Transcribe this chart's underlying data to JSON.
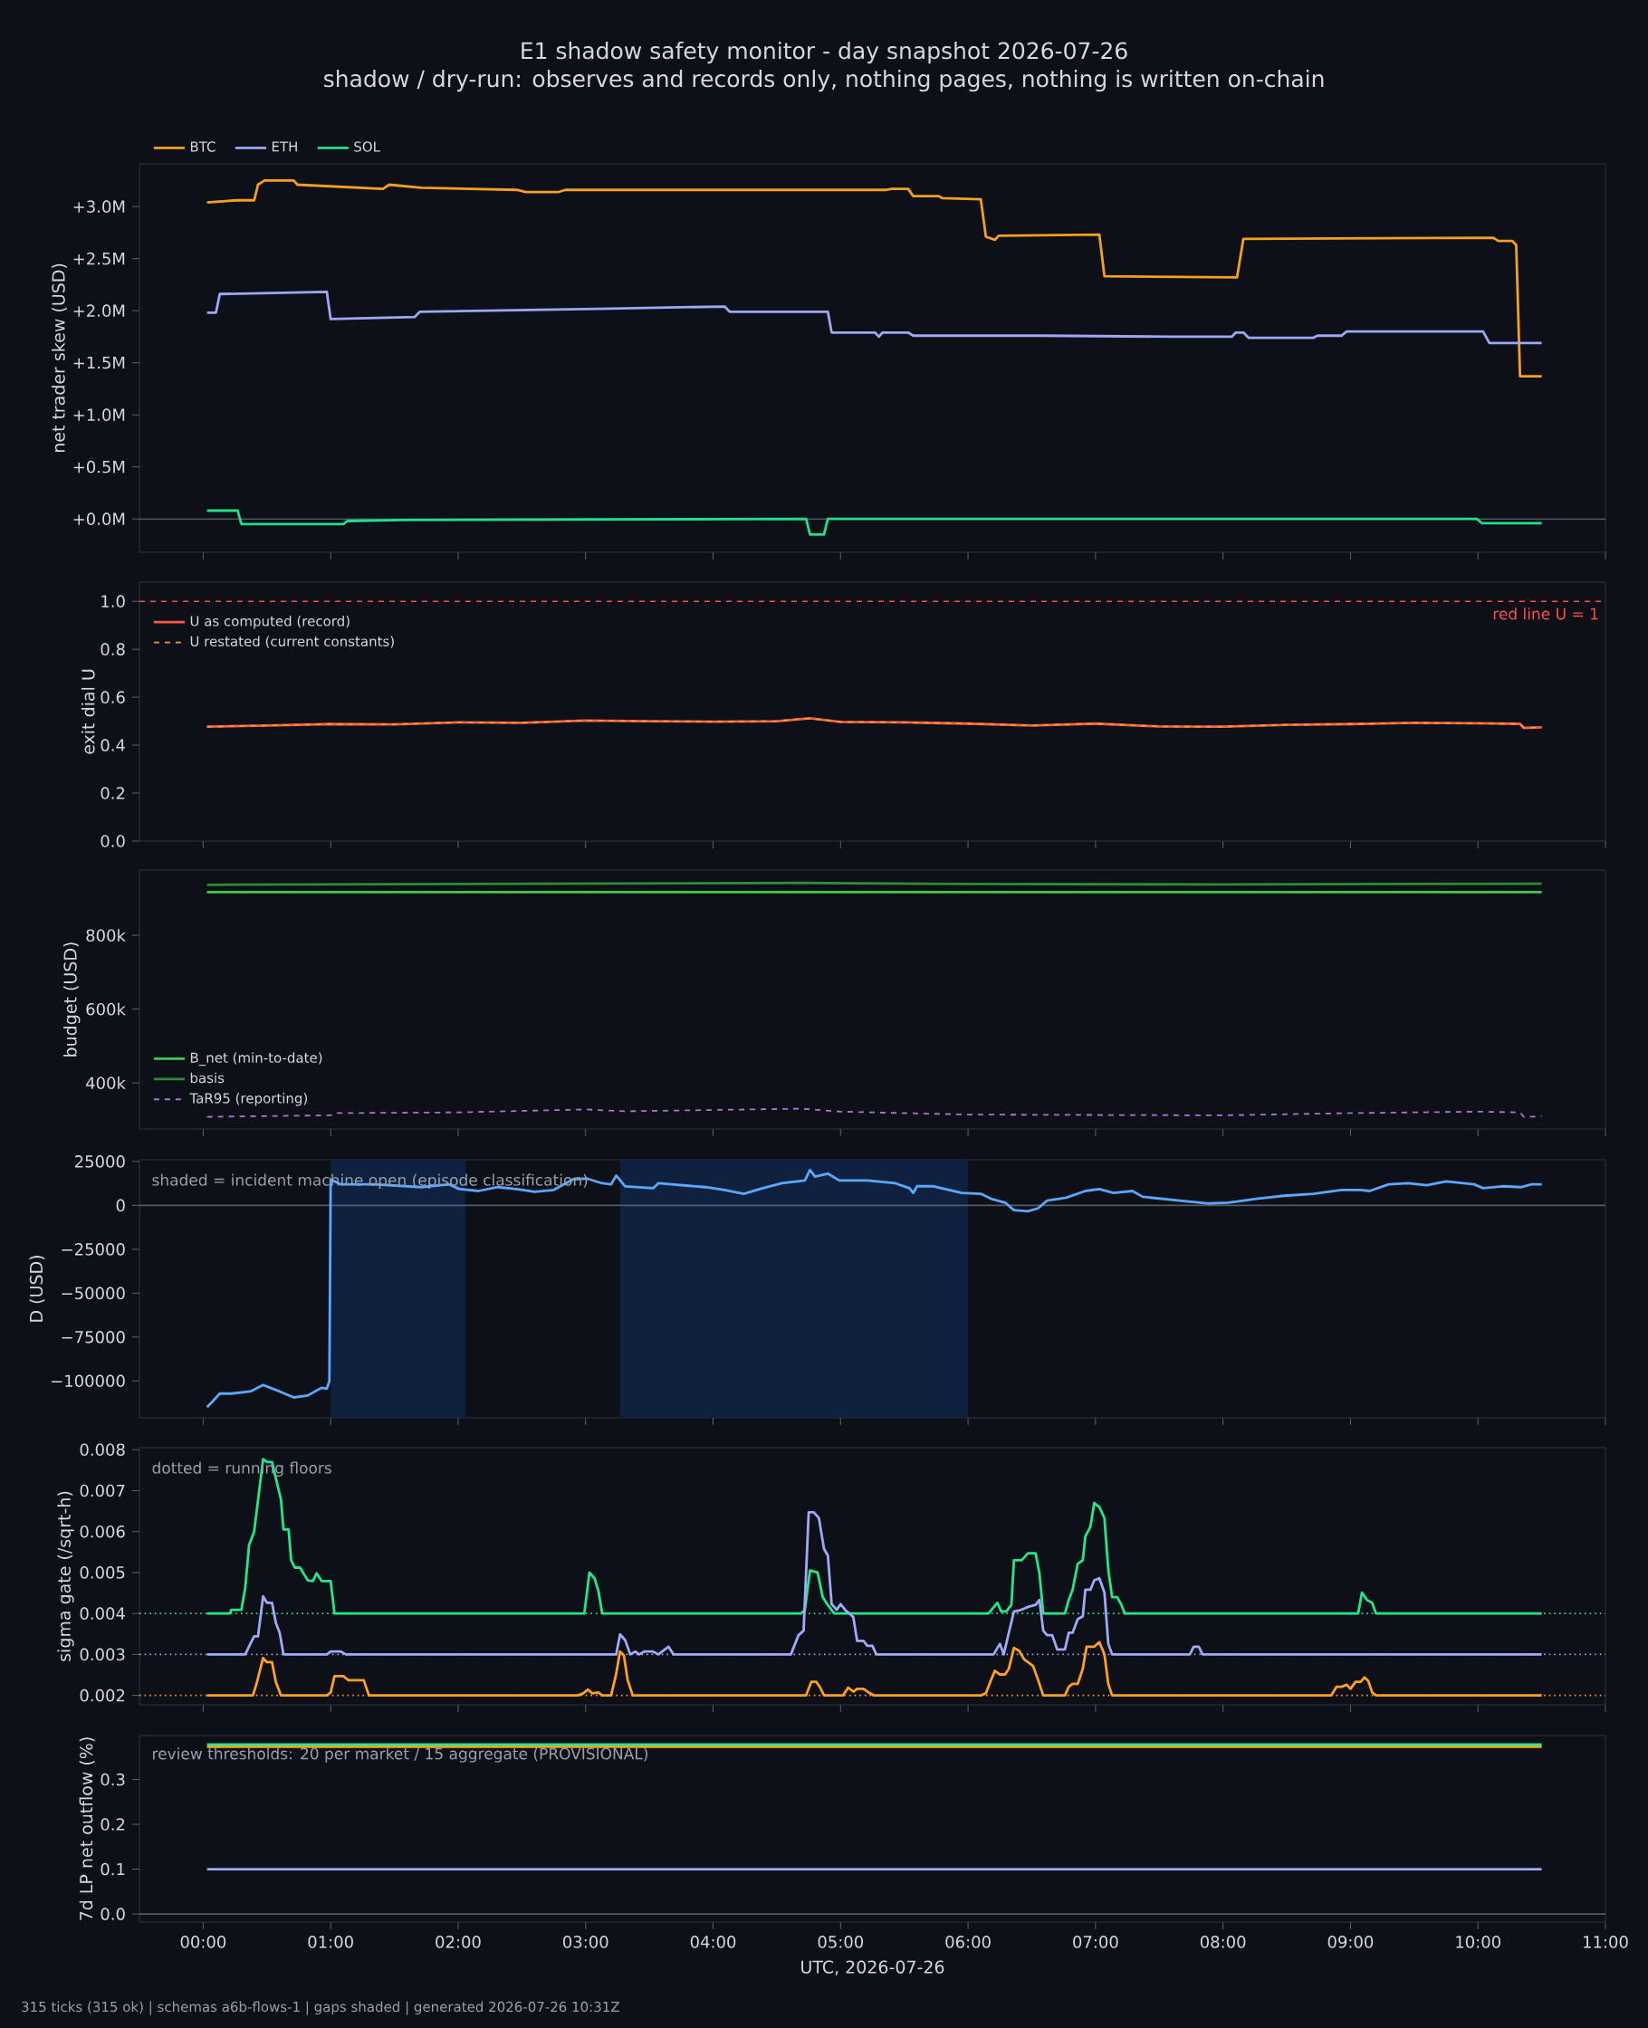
{
  "chart_data": [
    {
      "type": "line",
      "title": "E1 shadow safety monitor - day snapshot 2026-07-26",
      "subtitle": "shadow / dry-run: observes and records only, nothing pages, nothing is written on-chain",
      "ylabel": "net trader skew (USD)",
      "xlim": [
        -0.5,
        11
      ],
      "xticks": [
        0,
        1,
        2,
        3,
        4,
        5,
        6,
        7,
        8,
        9,
        10,
        11
      ],
      "ylim": [
        -320000,
        3410000
      ],
      "yticks": [
        {
          "value": 0,
          "label": "+0.0M"
        },
        {
          "value": 500000,
          "label": "+0.5M"
        },
        {
          "value": 1000000,
          "label": "+1.0M"
        },
        {
          "value": 1500000,
          "label": "+1.5M"
        },
        {
          "value": 2000000,
          "label": "+2.0M"
        },
        {
          "value": 2500000,
          "label": "+2.5M"
        },
        {
          "value": 3000000,
          "label": "+3.0M"
        }
      ],
      "tick_labels": "y",
      "legend": "top left",
      "ref_lines": [
        {
          "axis": "y",
          "value": 0,
          "color": "#555a66"
        }
      ],
      "series": [
        {
          "name": "BTC",
          "color": "#f5a01f",
          "x": [
            0.03,
            0.26,
            0.4,
            0.43,
            0.48,
            0.71,
            0.74,
            1.41,
            1.46,
            1.71,
            2.46,
            2.53,
            2.79,
            2.84,
            5.36,
            5.4,
            5.53,
            5.57,
            5.77,
            5.8,
            6.1,
            6.14,
            6.21,
            6.24,
            7.03,
            7.07,
            8.11,
            8.16,
            10.12,
            10.16,
            10.27,
            10.3,
            10.33,
            10.5
          ],
          "values": [
            3040000,
            3060000,
            3060000,
            3210000,
            3250000,
            3250000,
            3210000,
            3170000,
            3210000,
            3180000,
            3160000,
            3140000,
            3140000,
            3160000,
            3160000,
            3170000,
            3170000,
            3100000,
            3100000,
            3080000,
            3070000,
            2710000,
            2680000,
            2720000,
            2730000,
            2330000,
            2320000,
            2690000,
            2700000,
            2670000,
            2670000,
            2630000,
            1370000,
            1370000
          ]
        },
        {
          "name": "ETH",
          "color": "#9ea7f7",
          "x": [
            0.03,
            0.1,
            0.13,
            0.97,
            1.0,
            1.66,
            1.7,
            3.2,
            4.09,
            4.13,
            4.9,
            4.93,
            5.27,
            5.3,
            5.33,
            5.53,
            5.57,
            6.47,
            6.58,
            7.59,
            8.07,
            8.1,
            8.16,
            8.2,
            8.71,
            8.74,
            8.93,
            8.97,
            10.04,
            10.09,
            10.5
          ],
          "values": [
            1980000,
            1980000,
            2160000,
            2180000,
            1920000,
            1940000,
            1990000,
            2020000,
            2040000,
            1990000,
            1990000,
            1790000,
            1790000,
            1750000,
            1790000,
            1790000,
            1760000,
            1760000,
            1760000,
            1750000,
            1750000,
            1790000,
            1790000,
            1740000,
            1740000,
            1760000,
            1760000,
            1800000,
            1800000,
            1690000,
            1690000
          ]
        },
        {
          "name": "SOL",
          "color": "#22e08a",
          "x": [
            0.03,
            0.27,
            0.3,
            1.1,
            1.13,
            1.56,
            4.73,
            4.76,
            4.87,
            4.9,
            9.99,
            10.03,
            10.5
          ],
          "values": [
            80000,
            80000,
            -50000,
            -50000,
            -20000,
            -10000,
            0,
            -150000,
            -150000,
            0,
            0,
            -40000,
            -40000
          ]
        }
      ]
    },
    {
      "type": "line",
      "ylabel": "exit dial U",
      "xlim": [
        -0.5,
        11
      ],
      "xticks": [
        0,
        1,
        2,
        3,
        4,
        5,
        6,
        7,
        8,
        9,
        10,
        11
      ],
      "ylim": [
        0,
        1.08
      ],
      "yticks": [
        {
          "value": 0,
          "label": "0.0"
        },
        {
          "value": 0.2,
          "label": "0.2"
        },
        {
          "value": 0.4,
          "label": "0.4"
        },
        {
          "value": 0.6,
          "label": "0.6"
        },
        {
          "value": 0.8,
          "label": "0.8"
        },
        {
          "value": 1,
          "label": "1.0"
        }
      ],
      "tick_labels": "y",
      "legend": "top left",
      "ref_lines": [
        {
          "axis": "y",
          "value": 1,
          "label": "red line U = 1",
          "color": "#ff4d4d",
          "line_style": "dashed"
        }
      ],
      "series": [
        {
          "name": "U as computed (record)",
          "color": "#ff5a46",
          "x": [
            0.03,
            0.5,
            1.0,
            1.5,
            2.0,
            2.5,
            3.0,
            3.5,
            4.0,
            4.5,
            4.76,
            5.0,
            5.5,
            6.0,
            6.5,
            7.0,
            7.5,
            8.0,
            8.5,
            9.0,
            9.5,
            10.0,
            10.33,
            10.36,
            10.5
          ],
          "values": [
            0.477,
            0.482,
            0.488,
            0.487,
            0.495,
            0.493,
            0.503,
            0.5,
            0.498,
            0.5,
            0.512,
            0.497,
            0.495,
            0.49,
            0.482,
            0.49,
            0.478,
            0.477,
            0.485,
            0.488,
            0.493,
            0.491,
            0.489,
            0.472,
            0.474
          ]
        },
        {
          "name": "U restated (current constants)",
          "color": "#e8a030",
          "line_style": "dashed",
          "x": [
            0.03,
            0.5,
            1.0,
            1.5,
            2.0,
            2.5,
            3.0,
            3.5,
            4.0,
            4.5,
            4.76,
            5.0,
            5.5,
            6.0,
            6.5,
            7.0,
            7.5,
            8.0,
            8.5,
            9.0,
            9.5,
            10.0,
            10.33,
            10.36,
            10.5
          ],
          "values": [
            0.477,
            0.482,
            0.488,
            0.487,
            0.495,
            0.493,
            0.503,
            0.5,
            0.498,
            0.5,
            0.512,
            0.497,
            0.495,
            0.49,
            0.482,
            0.49,
            0.478,
            0.477,
            0.485,
            0.488,
            0.493,
            0.491,
            0.489,
            0.472,
            0.474
          ]
        }
      ]
    },
    {
      "type": "line",
      "ylabel": "budget (USD)",
      "xlim": [
        -0.5,
        11
      ],
      "xticks": [
        0,
        1,
        2,
        3,
        4,
        5,
        6,
        7,
        8,
        9,
        10,
        11
      ],
      "ylim": [
        275000,
        977000
      ],
      "yticks": [
        {
          "value": 400000,
          "label": "400k"
        },
        {
          "value": 600000,
          "label": "600k"
        },
        {
          "value": 800000,
          "label": "800k"
        }
      ],
      "tick_labels": "y",
      "legend": "bottom left",
      "series": [
        {
          "name": "B_net (min-to-date)",
          "color": "#3ccc4a",
          "x": [
            0.03,
            10.5
          ],
          "values": [
            917000,
            917000
          ]
        },
        {
          "name": "basis",
          "color": "#2e8b3a",
          "x": [
            0.03,
            2.0,
            4.7,
            6.0,
            8.0,
            10.5
          ],
          "values": [
            937000,
            939000,
            942000,
            939000,
            938000,
            940000
          ]
        },
        {
          "name": "TaR95 (reporting)",
          "color": "#b070d8",
          "line_style": "dashed",
          "x": [
            0.03,
            1.0,
            1.05,
            2.0,
            3.0,
            3.3,
            4.7,
            5.0,
            6.0,
            7.0,
            8.0,
            9.0,
            10.0,
            10.33,
            10.36,
            10.5
          ],
          "values": [
            308000,
            312000,
            318000,
            320000,
            328000,
            323000,
            330000,
            322000,
            314000,
            313000,
            312000,
            318000,
            322000,
            320000,
            308000,
            309000
          ]
        }
      ]
    },
    {
      "type": "line",
      "ylabel": "D (USD)",
      "xlim": [
        -0.5,
        11
      ],
      "xticks": [
        0,
        1,
        2,
        3,
        4,
        5,
        6,
        7,
        8,
        9,
        10,
        11
      ],
      "ylim": [
        -121000,
        26000
      ],
      "yticks": [
        {
          "value": -100000,
          "label": "−100000"
        },
        {
          "value": -75000,
          "label": "−75000"
        },
        {
          "value": -50000,
          "label": "−50000"
        },
        {
          "value": -25000,
          "label": "−25000"
        },
        0,
        25000
      ],
      "tick_labels": "y",
      "annotations": [
        "shaded = incident machine open (episode classification)"
      ],
      "bands": [
        {
          "axis": "x",
          "from": 1.0,
          "to": 2.06,
          "color": "#10213f"
        },
        {
          "axis": "x",
          "from": 3.27,
          "to": 6.0,
          "color": "#10213f"
        }
      ],
      "ref_lines": [
        {
          "axis": "y",
          "value": 0,
          "color": "#555a66"
        }
      ],
      "series": [
        {
          "color": "#5aa8ff",
          "x": [
            0.03,
            0.07,
            0.13,
            0.22,
            0.37,
            0.47,
            0.6,
            0.71,
            0.82,
            0.93,
            0.97,
            0.99,
            1.0,
            1.08,
            1.34,
            1.71,
            1.93,
            2.01,
            2.16,
            2.31,
            2.46,
            2.6,
            2.75,
            2.9,
            3.01,
            3.13,
            3.2,
            3.24,
            3.31,
            3.53,
            3.57,
            3.94,
            4.09,
            4.24,
            4.39,
            4.54,
            4.72,
            4.76,
            4.8,
            4.9,
            4.99,
            5.21,
            5.43,
            5.54,
            5.57,
            5.6,
            5.73,
            5.95,
            6.1,
            6.18,
            6.29,
            6.36,
            6.47,
            6.55,
            6.62,
            6.77,
            6.92,
            7.03,
            7.14,
            7.29,
            7.37,
            7.66,
            7.89,
            8.04,
            8.11,
            8.26,
            8.48,
            8.71,
            8.93,
            9.08,
            9.15,
            9.3,
            9.45,
            9.6,
            9.75,
            9.97,
            10.04,
            10.19,
            10.34,
            10.42,
            10.5
          ],
          "values": [
            -114900,
            -112000,
            -107200,
            -107200,
            -106000,
            -102300,
            -106000,
            -109400,
            -108300,
            -103900,
            -104400,
            -100100,
            14800,
            12000,
            12000,
            10400,
            12000,
            9300,
            8200,
            10400,
            9300,
            7700,
            8800,
            14800,
            15300,
            12600,
            12000,
            17000,
            10900,
            9800,
            12600,
            10400,
            8800,
            6600,
            9800,
            12600,
            14200,
            20200,
            16400,
            18100,
            14200,
            14200,
            12600,
            9800,
            7100,
            10900,
            10900,
            7100,
            6600,
            3800,
            1600,
            -2700,
            -3300,
            -1600,
            2700,
            4400,
            8200,
            9300,
            7100,
            8200,
            4900,
            2700,
            1100,
            1600,
            2200,
            3800,
            5500,
            6600,
            8800,
            8800,
            8200,
            12000,
            12600,
            11500,
            13700,
            12000,
            9800,
            10900,
            10400,
            12000,
            12000
          ]
        }
      ]
    },
    {
      "type": "line",
      "ylabel": "sigma gate (/sqrt-h)",
      "xlim": [
        -0.5,
        11
      ],
      "xticks": [
        0,
        1,
        2,
        3,
        4,
        5,
        6,
        7,
        8,
        9,
        10,
        11
      ],
      "ylim": [
        0.00177,
        0.00805
      ],
      "yticks": [
        0.002,
        0.003,
        0.004,
        0.005,
        0.006,
        0.007,
        0.008
      ],
      "tick_labels": "y",
      "annotations": [
        "dotted = running floors"
      ],
      "ref_lines": [
        {
          "axis": "y",
          "value": 0.004,
          "color": "#22e88a",
          "line_style": "dotted"
        },
        {
          "axis": "y",
          "value": 0.003,
          "color": "#a0a8f8",
          "line_style": "dotted"
        },
        {
          "axis": "y",
          "value": 0.002,
          "color": "#ffa020",
          "line_style": "dotted"
        }
      ],
      "series": [
        {
          "color": "#22e88a",
          "x": [
            0.03,
            0.21,
            0.22,
            0.3,
            0.33,
            0.36,
            0.4,
            0.47,
            0.5,
            0.54,
            0.57,
            0.61,
            0.63,
            0.67,
            0.69,
            0.72,
            0.76,
            0.82,
            0.86,
            0.89,
            0.93,
            0.97,
            1.0,
            1.03,
            2.99,
            3.03,
            3.07,
            3.1,
            3.13,
            4.69,
            4.72,
            4.76,
            4.82,
            4.86,
            4.9,
            4.95,
            6.16,
            6.23,
            6.26,
            6.3,
            6.34,
            6.36,
            6.42,
            6.47,
            6.53,
            6.56,
            6.59,
            6.76,
            6.79,
            6.82,
            6.86,
            6.9,
            6.92,
            6.96,
            6.99,
            7.03,
            7.07,
            7.1,
            7.13,
            7.17,
            7.2,
            7.23,
            9.06,
            9.09,
            9.13,
            9.17,
            9.2,
            10.5
          ],
          "values": [
            0.004,
            0.004,
            0.00409,
            0.00409,
            0.00463,
            0.00567,
            0.006,
            0.00777,
            0.0077,
            0.0077,
            0.0073,
            0.00679,
            0.00605,
            0.00605,
            0.0053,
            0.00512,
            0.00512,
            0.00481,
            0.00479,
            0.00498,
            0.00479,
            0.00479,
            0.00479,
            0.004,
            0.004,
            0.005,
            0.00486,
            0.00456,
            0.004,
            0.004,
            0.00409,
            0.00505,
            0.005,
            0.0044,
            0.00421,
            0.004,
            0.004,
            0.00426,
            0.00405,
            0.00405,
            0.00421,
            0.0053,
            0.0053,
            0.00547,
            0.00547,
            0.00498,
            0.004,
            0.004,
            0.00433,
            0.00458,
            0.00521,
            0.0053,
            0.00588,
            0.00612,
            0.0067,
            0.0066,
            0.00633,
            0.00507,
            0.0044,
            0.0044,
            0.00423,
            0.004,
            0.004,
            0.00451,
            0.00433,
            0.00426,
            0.004,
            0.004
          ]
        },
        {
          "color": "#a0a8f8",
          "x": [
            0.03,
            0.33,
            0.37,
            0.4,
            0.43,
            0.47,
            0.5,
            0.54,
            0.57,
            0.6,
            0.63,
            0.97,
            1.0,
            1.08,
            1.12,
            3.24,
            3.27,
            3.31,
            3.35,
            3.39,
            3.42,
            3.46,
            3.53,
            3.57,
            3.65,
            3.69,
            4.61,
            4.67,
            4.71,
            4.75,
            4.79,
            4.83,
            4.87,
            4.9,
            4.93,
            4.97,
            5.0,
            5.04,
            5.07,
            5.1,
            5.13,
            5.18,
            5.21,
            5.25,
            5.28,
            6.2,
            6.25,
            6.28,
            6.31,
            6.36,
            6.4,
            6.44,
            6.47,
            6.53,
            6.56,
            6.59,
            6.62,
            6.66,
            6.7,
            6.76,
            6.79,
            6.82,
            6.86,
            6.9,
            6.92,
            6.96,
            6.99,
            7.03,
            7.07,
            7.1,
            7.13,
            7.74,
            7.77,
            7.81,
            7.84,
            10.5
          ],
          "values": [
            0.003,
            0.003,
            0.00326,
            0.00344,
            0.00344,
            0.00442,
            0.00426,
            0.00426,
            0.00377,
            0.00353,
            0.003,
            0.003,
            0.00307,
            0.00307,
            0.003,
            0.003,
            0.00349,
            0.00335,
            0.003,
            0.00307,
            0.003,
            0.00307,
            0.00307,
            0.003,
            0.00319,
            0.003,
            0.003,
            0.00347,
            0.00358,
            0.00647,
            0.00647,
            0.00633,
            0.00558,
            0.00542,
            0.00423,
            0.00409,
            0.00423,
            0.00407,
            0.004,
            0.00391,
            0.00333,
            0.00333,
            0.00321,
            0.00321,
            0.003,
            0.003,
            0.00326,
            0.003,
            0.0034,
            0.00405,
            0.00407,
            0.00412,
            0.00416,
            0.00421,
            0.00433,
            0.00358,
            0.00347,
            0.00347,
            0.00312,
            0.00312,
            0.00353,
            0.00353,
            0.00386,
            0.00393,
            0.00458,
            0.00458,
            0.00481,
            0.00486,
            0.00451,
            0.00326,
            0.003,
            0.003,
            0.00319,
            0.00319,
            0.003,
            0.003
          ]
        },
        {
          "color": "#ffa020",
          "x": [
            0.03,
            0.39,
            0.42,
            0.47,
            0.5,
            0.54,
            0.57,
            0.61,
            0.97,
            1.0,
            1.03,
            1.1,
            1.14,
            1.26,
            1.3,
            2.94,
            2.98,
            3.02,
            3.05,
            3.1,
            3.13,
            3.2,
            3.24,
            3.27,
            3.3,
            3.33,
            3.37,
            4.73,
            4.77,
            4.81,
            4.84,
            4.87,
            5.02,
            5.06,
            5.1,
            5.13,
            5.18,
            5.22,
            5.26,
            6.1,
            6.14,
            6.18,
            6.21,
            6.25,
            6.29,
            6.32,
            6.36,
            6.4,
            6.44,
            6.47,
            6.51,
            6.55,
            6.59,
            6.76,
            6.79,
            6.82,
            6.86,
            6.9,
            6.93,
            6.99,
            7.03,
            7.07,
            7.1,
            7.13,
            8.85,
            8.89,
            8.93,
            8.97,
            9.0,
            9.04,
            9.08,
            9.11,
            9.14,
            9.17,
            9.2,
            10.5
          ],
          "values": [
            0.002,
            0.002,
            0.0023,
            0.00291,
            0.00281,
            0.00281,
            0.00233,
            0.002,
            0.002,
            0.00207,
            0.00247,
            0.00247,
            0.00237,
            0.00237,
            0.002,
            0.002,
            0.00205,
            0.00214,
            0.00205,
            0.00207,
            0.002,
            0.002,
            0.00253,
            0.00307,
            0.00298,
            0.00237,
            0.002,
            0.002,
            0.00233,
            0.00233,
            0.00219,
            0.002,
            0.002,
            0.00219,
            0.00209,
            0.00216,
            0.00216,
            0.00207,
            0.002,
            0.002,
            0.00205,
            0.00237,
            0.0026,
            0.00251,
            0.00251,
            0.00265,
            0.00316,
            0.00309,
            0.00288,
            0.00281,
            0.00272,
            0.00237,
            0.002,
            0.002,
            0.00221,
            0.00228,
            0.00228,
            0.00265,
            0.00319,
            0.00319,
            0.0033,
            0.003,
            0.00228,
            0.002,
            0.002,
            0.00221,
            0.00221,
            0.00226,
            0.00216,
            0.00233,
            0.00233,
            0.00244,
            0.00235,
            0.00207,
            0.002,
            0.002
          ]
        }
      ]
    },
    {
      "type": "line",
      "xlabel": "UTC, 2026-07-26",
      "ylabel": "7d LP net outflow (%)",
      "xlim": [
        -0.5,
        11
      ],
      "xticks": [
        {
          "value": 0,
          "label": "00:00"
        },
        {
          "value": 1,
          "label": "01:00"
        },
        {
          "value": 2,
          "label": "02:00"
        },
        {
          "value": 3,
          "label": "03:00"
        },
        {
          "value": 4,
          "label": "04:00"
        },
        {
          "value": 5,
          "label": "05:00"
        },
        {
          "value": 6,
          "label": "06:00"
        },
        {
          "value": 7,
          "label": "07:00"
        },
        {
          "value": 8,
          "label": "08:00"
        },
        {
          "value": 9,
          "label": "09:00"
        },
        {
          "value": 10,
          "label": "10:00"
        },
        {
          "value": 11,
          "label": "11:00"
        }
      ],
      "ylim": [
        -0.018,
        0.398
      ],
      "yticks": [
        {
          "value": 0,
          "label": "0.0"
        },
        0.1,
        0.2,
        0.3
      ],
      "annotations": [
        "review thresholds: 20 per market / 15 aggregate (PROVISIONAL)",
        "315 ticks (315 ok) | schemas a6b-flows-1 | gaps shaded | generated 2026-07-26 10:31Z"
      ],
      "ref_lines": [
        {
          "axis": "y",
          "value": 0,
          "color": "#555a66"
        }
      ],
      "series": [
        {
          "color": "#ffa020",
          "x": [
            0.03,
            10.5
          ],
          "values": [
            0.373,
            0.373
          ]
        },
        {
          "color": "#22e88a",
          "x": [
            0.03,
            10.5
          ],
          "values": [
            0.378,
            0.378
          ]
        },
        {
          "color": "#a0a8f8",
          "x": [
            0.03,
            10.5
          ],
          "values": [
            0.1,
            0.1
          ]
        }
      ]
    }
  ]
}
